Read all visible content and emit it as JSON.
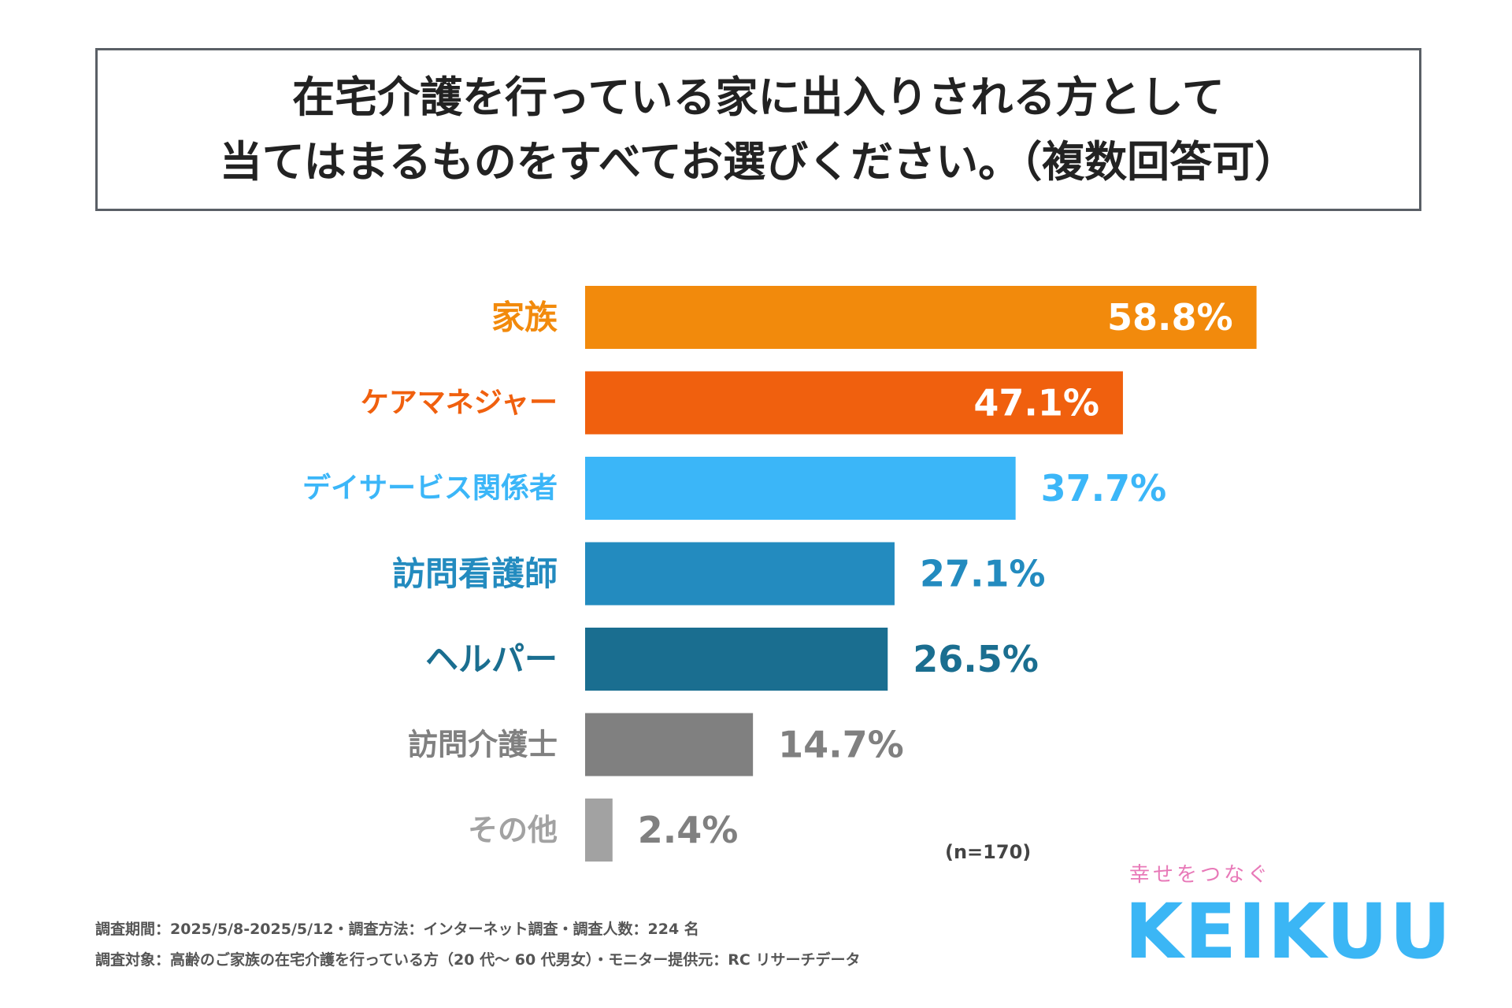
{
  "title": {
    "line1": "在宅介護を行っている家に出入りされる方として",
    "line2": "当てはまるものをすべてお選びください。（複数回答可）"
  },
  "chart_data": {
    "type": "bar",
    "orientation": "horizontal",
    "title": "在宅介護を行っている家に出入りされる方として当てはまるものをすべてお選びください。（複数回答可）",
    "categories": [
      "家族",
      "ケアマネジャー",
      "デイサービス関係者",
      "訪問看護師",
      "ヘルパー",
      "訪問介護士",
      "その他"
    ],
    "values": [
      58.8,
      47.1,
      37.7,
      27.1,
      26.5,
      14.7,
      2.4
    ],
    "value_labels": [
      "58.8%",
      "47.1%",
      "37.7%",
      "27.1%",
      "26.5%",
      "14.7%",
      "2.4%"
    ],
    "colors": [
      "#f28a0c",
      "#f0600e",
      "#3bb6f8",
      "#238bbf",
      "#1a6e90",
      "#808080",
      "#a2a2a2"
    ],
    "value_label_colors": [
      "#ffffff",
      "#ffffff",
      "#3bb6f8",
      "#238bbf",
      "#1a6e90",
      "#808080",
      "#808080"
    ],
    "value_label_inside": [
      true,
      true,
      false,
      false,
      false,
      false,
      false
    ],
    "xlim": [
      0,
      100
    ],
    "xlabel": "",
    "ylabel": "",
    "grid": false
  },
  "sample_note": "(n=170)",
  "footer": {
    "line1": "調査期間：2025/5/8-2025/5/12・調査方法：インターネット調査・調査人数：224 名",
    "line2": "調査対象：高齢のご家族の在宅介護を行っている方（20 代～ 60 代男女）・モニター提供元：RC リサーチデータ"
  },
  "brand": {
    "tagline": "幸せをつなぐ",
    "logo": "KEIKUU"
  }
}
